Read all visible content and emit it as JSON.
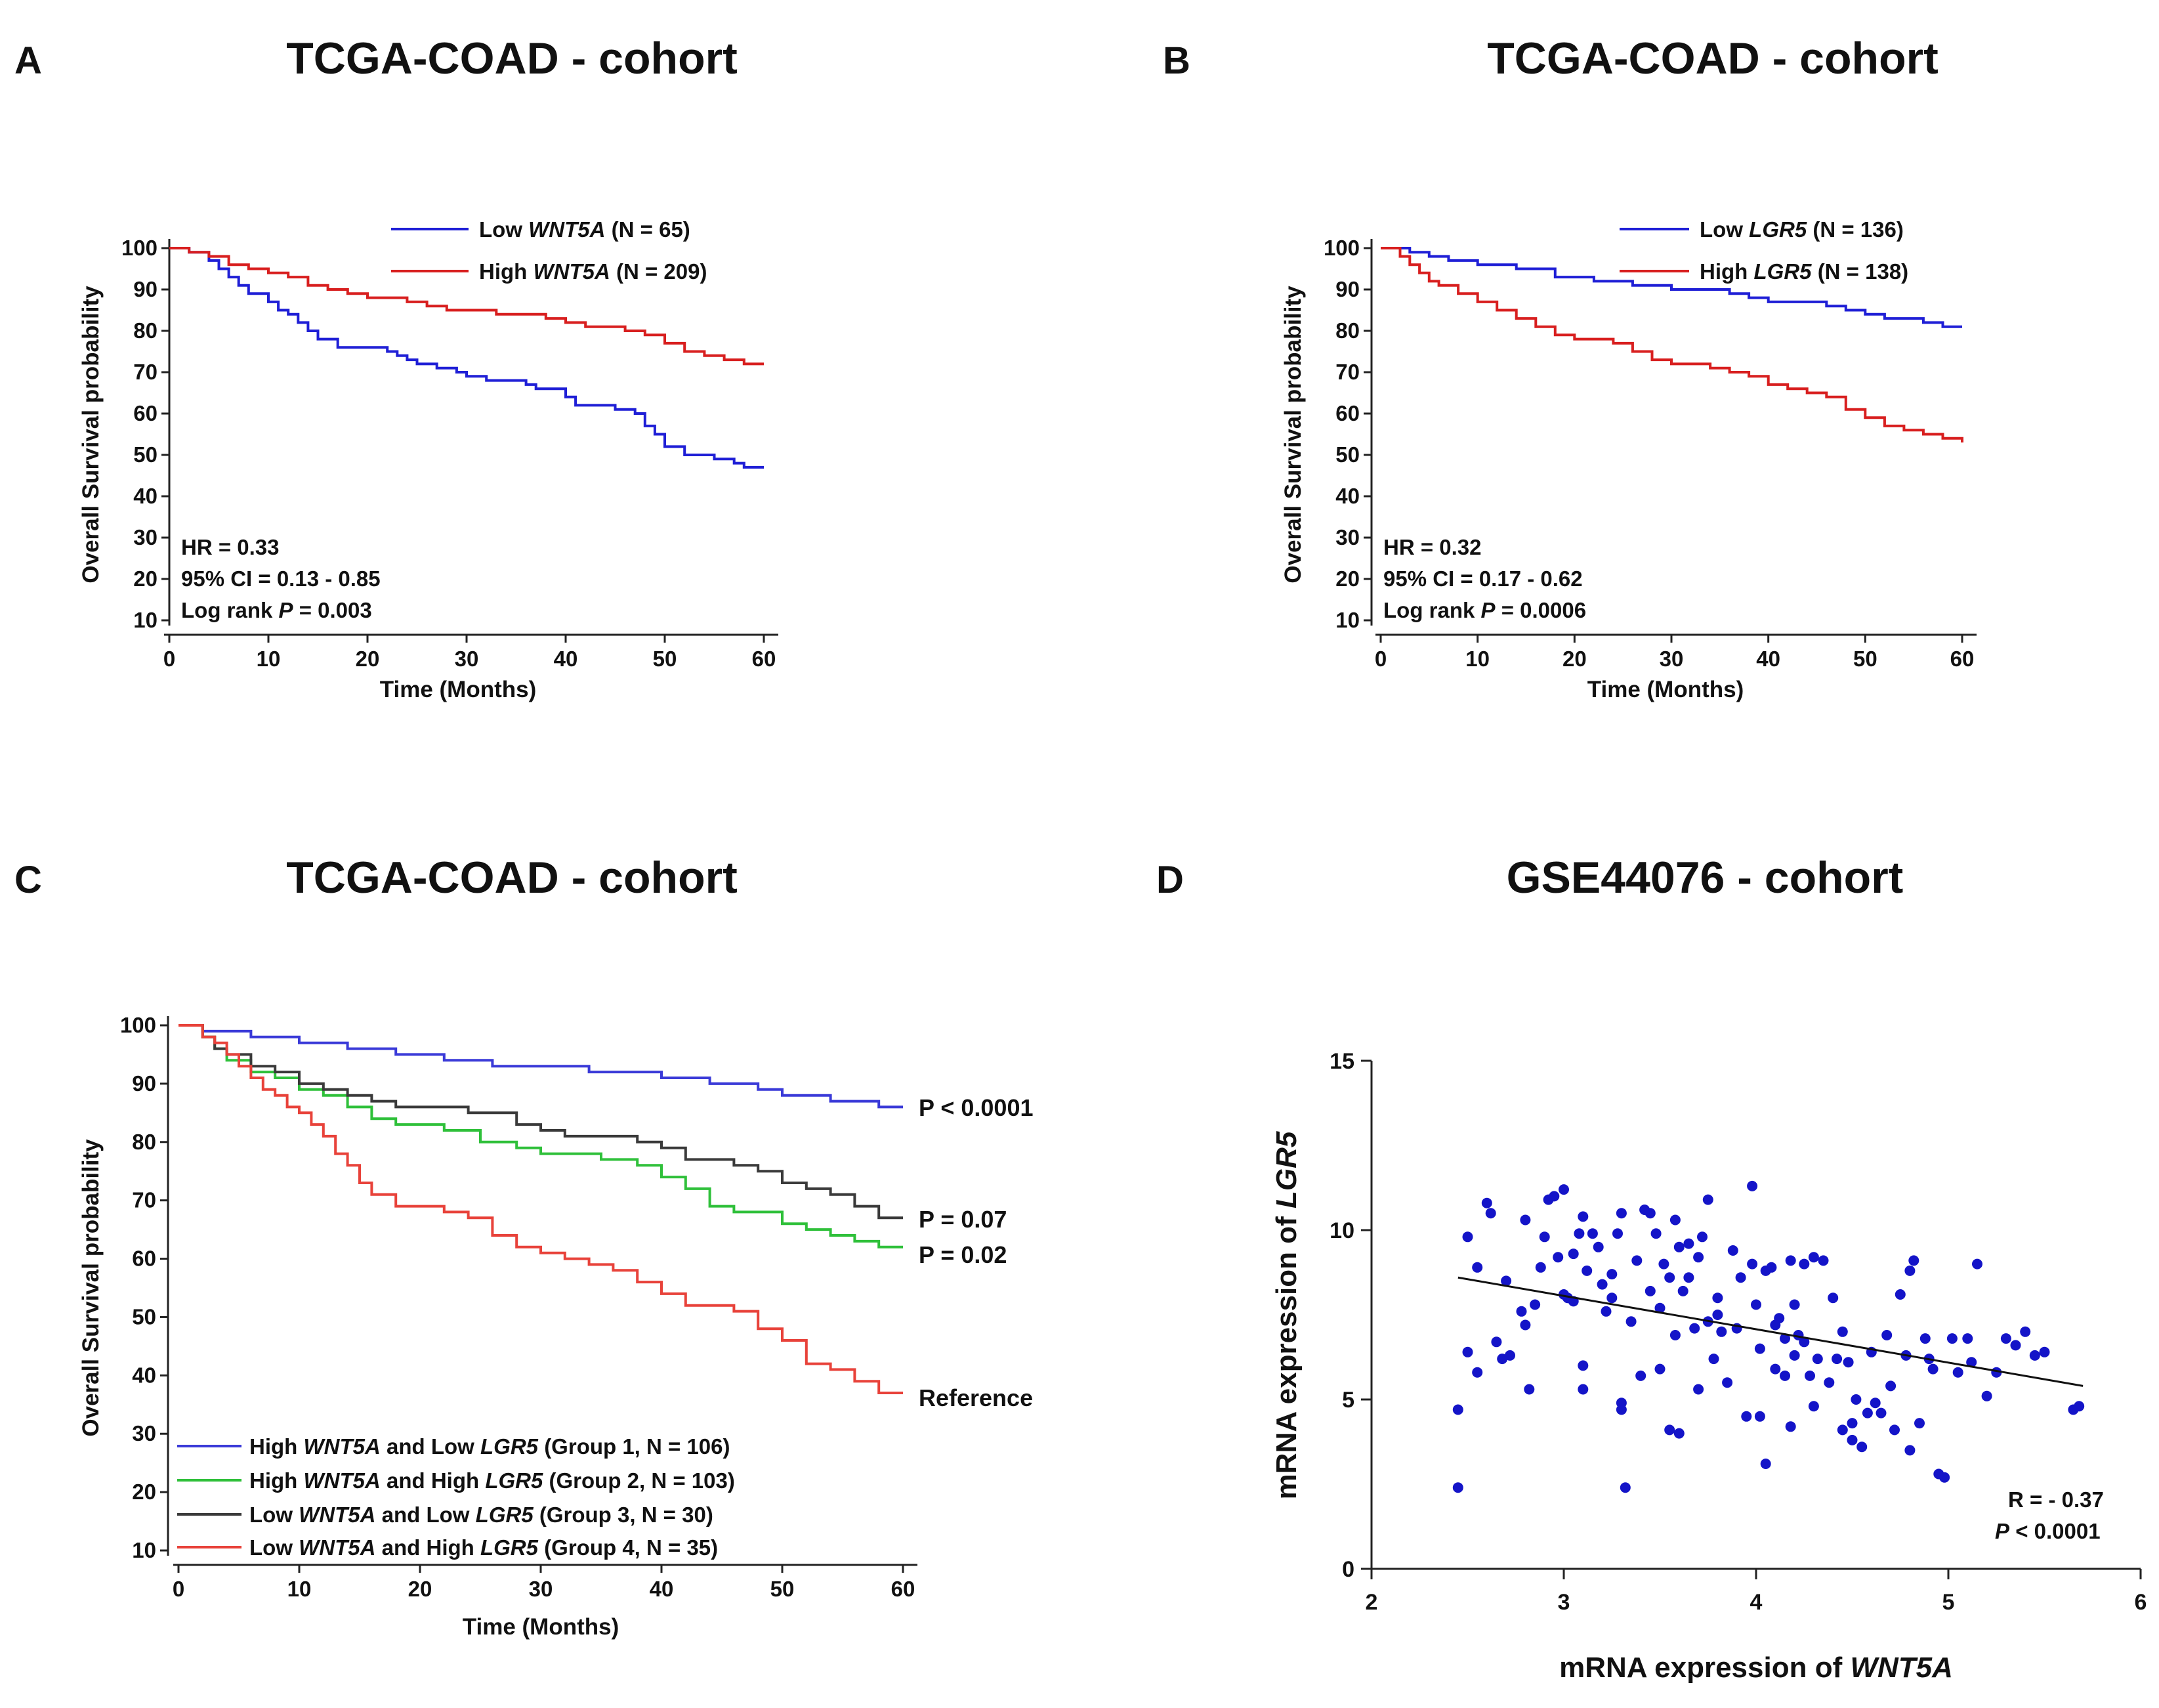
{
  "chart_data": [
    {
      "id": "A",
      "panel_label": "A",
      "type": "line",
      "title": "TCGA-COAD - cohort",
      "xlabel": "Time (Months)",
      "ylabel": "Overall Survival probability",
      "xlim": [
        0,
        60
      ],
      "ylim": [
        10,
        100
      ],
      "xticks": [
        0,
        10,
        20,
        30,
        40,
        50,
        60
      ],
      "yticks": [
        10,
        20,
        30,
        40,
        50,
        60,
        70,
        80,
        90,
        100
      ],
      "series": [
        {
          "name": "Low",
          "gene": "WNT5A",
          "n_text": "(N = 65)",
          "color": "#1f1fd6",
          "x": [
            0,
            2,
            4,
            5,
            6,
            7,
            8,
            10,
            11,
            12,
            13,
            14,
            15,
            17,
            20,
            22,
            23,
            24,
            25,
            27,
            29,
            30,
            32,
            35,
            36,
            37,
            40,
            41,
            44,
            45,
            47,
            48,
            49,
            50,
            52,
            54,
            55,
            57,
            58,
            60
          ],
          "y": [
            100,
            99,
            97,
            95,
            93,
            91,
            89,
            87,
            85,
            84,
            82,
            80,
            78,
            76,
            76,
            75,
            74,
            73,
            72,
            71,
            70,
            69,
            68,
            68,
            67,
            66,
            64,
            62,
            62,
            61,
            60,
            57,
            55,
            52,
            50,
            50,
            49,
            48,
            47,
            47
          ]
        },
        {
          "name": "High",
          "gene": "WNT5A",
          "n_text": "(N = 209)",
          "color": "#d81f1f",
          "x": [
            0,
            2,
            4,
            6,
            8,
            10,
            12,
            14,
            16,
            18,
            20,
            22,
            24,
            26,
            28,
            30,
            33,
            36,
            38,
            40,
            42,
            44,
            46,
            48,
            50,
            52,
            54,
            56,
            58,
            60
          ],
          "y": [
            100,
            99,
            98,
            96,
            95,
            94,
            93,
            91,
            90,
            89,
            88,
            88,
            87,
            86,
            85,
            85,
            84,
            84,
            83,
            82,
            81,
            81,
            80,
            79,
            77,
            75,
            74,
            73,
            72,
            72
          ]
        }
      ],
      "annotations": [
        "HR = 0.33",
        "95% CI = 0.13 - 0.85",
        "Log rank",
        "P",
        "= 0.003"
      ]
    },
    {
      "id": "B",
      "panel_label": "B",
      "type": "line",
      "title": "TCGA-COAD - cohort",
      "xlabel": "Time (Months)",
      "ylabel": "Overall Survival probability",
      "xlim": [
        0,
        60
      ],
      "ylim": [
        10,
        100
      ],
      "xticks": [
        0,
        10,
        20,
        30,
        40,
        50,
        60
      ],
      "yticks": [
        10,
        20,
        30,
        40,
        50,
        60,
        70,
        80,
        90,
        100
      ],
      "series": [
        {
          "name": "Low",
          "gene": "LGR5",
          "n_text": "(N = 136)",
          "color": "#1f1fd6",
          "x": [
            0,
            3,
            5,
            7,
            10,
            14,
            18,
            22,
            26,
            30,
            34,
            36,
            38,
            40,
            44,
            46,
            48,
            50,
            52,
            54,
            56,
            58,
            60
          ],
          "y": [
            100,
            99,
            98,
            97,
            96,
            95,
            93,
            92,
            91,
            90,
            90,
            89,
            88,
            87,
            87,
            86,
            85,
            84,
            83,
            83,
            82,
            81,
            81
          ]
        },
        {
          "name": "High",
          "gene": "LGR5",
          "n_text": "(N = 138)",
          "color": "#d81f1f",
          "x": [
            0,
            2,
            3,
            4,
            5,
            6,
            8,
            10,
            12,
            14,
            16,
            18,
            20,
            22,
            24,
            26,
            28,
            30,
            32,
            34,
            36,
            38,
            40,
            42,
            44,
            46,
            48,
            50,
            52,
            54,
            56,
            58,
            60
          ],
          "y": [
            100,
            98,
            96,
            94,
            92,
            91,
            89,
            87,
            85,
            83,
            81,
            79,
            78,
            78,
            77,
            75,
            73,
            72,
            72,
            71,
            70,
            69,
            67,
            66,
            65,
            64,
            61,
            59,
            57,
            56,
            55,
            54,
            53
          ]
        }
      ],
      "annotations": [
        "HR = 0.32",
        "95% CI = 0.17 - 0.62",
        "Log rank",
        "P",
        "= 0.0006"
      ]
    },
    {
      "id": "C",
      "panel_label": "C",
      "type": "line",
      "title": "TCGA-COAD - cohort",
      "xlabel": "Time (Months)",
      "ylabel": "Overall Survival probability",
      "xlim": [
        0,
        60
      ],
      "ylim": [
        10,
        100
      ],
      "xticks": [
        0,
        10,
        20,
        30,
        40,
        50,
        60
      ],
      "yticks": [
        10,
        20,
        30,
        40,
        50,
        60,
        70,
        80,
        90,
        100
      ],
      "series": [
        {
          "prefix": "High",
          "gene1": "WNT5A",
          "mid": "and Low",
          "gene2": "LGR5",
          "suffix": "(Group 1, N = 106)",
          "color": "#3a3ad8",
          "end_label": "P < 0.0001",
          "x": [
            0,
            2,
            4,
            6,
            8,
            10,
            14,
            18,
            22,
            26,
            30,
            34,
            38,
            40,
            42,
            44,
            46,
            48,
            50,
            52,
            54,
            56,
            58,
            60
          ],
          "y": [
            100,
            99,
            99,
            98,
            98,
            97,
            96,
            95,
            94,
            93,
            93,
            92,
            92,
            91,
            91,
            90,
            90,
            89,
            88,
            88,
            87,
            87,
            86,
            86
          ]
        },
        {
          "prefix": "High",
          "gene1": "WNT5A",
          "mid": "and High",
          "gene2": "LGR5",
          "suffix": "(Group 2, N = 103)",
          "color": "#2fc03a",
          "end_label": "P = 0.02",
          "x": [
            0,
            2,
            3,
            4,
            6,
            8,
            10,
            12,
            14,
            16,
            18,
            20,
            22,
            25,
            28,
            30,
            32,
            35,
            38,
            40,
            42,
            44,
            46,
            48,
            50,
            52,
            54,
            56,
            58,
            60
          ],
          "y": [
            100,
            98,
            96,
            94,
            92,
            91,
            89,
            88,
            86,
            84,
            83,
            83,
            82,
            80,
            79,
            78,
            78,
            77,
            76,
            74,
            72,
            69,
            68,
            68,
            66,
            65,
            64,
            63,
            62,
            62
          ]
        },
        {
          "prefix": "Low",
          "gene1": "WNT5A",
          "mid": "and Low",
          "gene2": "LGR5",
          "suffix": "(Group 3, N = 30)",
          "color": "#3a3a3a",
          "end_label": "P = 0.07",
          "x": [
            0,
            2,
            3,
            4,
            6,
            8,
            10,
            12,
            14,
            16,
            18,
            20,
            24,
            28,
            30,
            32,
            35,
            38,
            40,
            42,
            44,
            46,
            48,
            50,
            52,
            54,
            56,
            58,
            60
          ],
          "y": [
            100,
            98,
            96,
            95,
            93,
            92,
            90,
            89,
            88,
            87,
            86,
            86,
            85,
            83,
            82,
            81,
            81,
            80,
            79,
            77,
            77,
            76,
            75,
            73,
            72,
            71,
            69,
            67,
            67
          ]
        },
        {
          "prefix": "Low",
          "gene1": "WNT5A",
          "mid": "and High",
          "gene2": "LGR5",
          "suffix": "(Group 4, N = 35)",
          "color": "#e8423a",
          "end_label": "Reference",
          "x": [
            0,
            2,
            3,
            4,
            5,
            6,
            7,
            8,
            9,
            10,
            11,
            12,
            13,
            14,
            15,
            16,
            18,
            20,
            22,
            24,
            26,
            28,
            30,
            32,
            34,
            36,
            38,
            40,
            42,
            44,
            46,
            48,
            50,
            52,
            54,
            56,
            58,
            60
          ],
          "y": [
            100,
            98,
            97,
            95,
            93,
            91,
            89,
            88,
            86,
            85,
            83,
            81,
            78,
            76,
            73,
            71,
            69,
            69,
            68,
            67,
            64,
            62,
            61,
            60,
            59,
            58,
            56,
            54,
            52,
            52,
            51,
            48,
            46,
            42,
            41,
            39,
            37,
            37
          ]
        }
      ]
    },
    {
      "id": "D",
      "panel_label": "D",
      "type": "scatter",
      "title": "GSE44076 - cohort",
      "xlabel_prefix": "mRNA expression of",
      "xlabel_gene": "WNT5A",
      "ylabel_prefix": "mRNA expression of",
      "ylabel_gene": "LGR5",
      "xlim": [
        2,
        6
      ],
      "ylim": [
        0,
        15
      ],
      "xticks": [
        2,
        3,
        4,
        5,
        6
      ],
      "yticks": [
        0,
        5,
        10,
        15
      ],
      "point_color": "#1414c8",
      "points": [
        [
          2.45,
          4.7
        ],
        [
          2.45,
          2.4
        ],
        [
          2.5,
          6.4
        ],
        [
          2.5,
          9.8
        ],
        [
          2.55,
          8.9
        ],
        [
          2.55,
          5.8
        ],
        [
          2.6,
          10.8
        ],
        [
          2.62,
          10.5
        ],
        [
          2.65,
          6.7
        ],
        [
          2.68,
          6.2
        ],
        [
          2.7,
          8.5
        ],
        [
          2.72,
          6.3
        ],
        [
          2.78,
          7.6
        ],
        [
          2.8,
          10.3
        ],
        [
          2.8,
          7.2
        ],
        [
          2.82,
          5.3
        ],
        [
          2.85,
          7.8
        ],
        [
          2.88,
          8.9
        ],
        [
          2.9,
          9.8
        ],
        [
          2.92,
          10.9
        ],
        [
          2.95,
          11.0
        ],
        [
          2.97,
          9.2
        ],
        [
          3.0,
          11.2
        ],
        [
          3.0,
          8.1
        ],
        [
          3.02,
          8.0
        ],
        [
          3.05,
          9.3
        ],
        [
          3.05,
          7.9
        ],
        [
          3.08,
          9.9
        ],
        [
          3.1,
          10.4
        ],
        [
          3.1,
          6.0
        ],
        [
          3.1,
          5.3
        ],
        [
          3.12,
          8.8
        ],
        [
          3.15,
          9.9
        ],
        [
          3.18,
          9.5
        ],
        [
          3.2,
          8.4
        ],
        [
          3.22,
          7.6
        ],
        [
          3.25,
          8.7
        ],
        [
          3.25,
          8.0
        ],
        [
          3.28,
          9.9
        ],
        [
          3.3,
          10.5
        ],
        [
          3.3,
          4.9
        ],
        [
          3.3,
          4.7
        ],
        [
          3.32,
          2.4
        ],
        [
          3.35,
          7.3
        ],
        [
          3.38,
          9.1
        ],
        [
          3.4,
          5.7
        ],
        [
          3.42,
          10.6
        ],
        [
          3.45,
          10.5
        ],
        [
          3.45,
          8.2
        ],
        [
          3.48,
          9.9
        ],
        [
          3.5,
          7.7
        ],
        [
          3.5,
          5.9
        ],
        [
          3.52,
          9.0
        ],
        [
          3.55,
          8.6
        ],
        [
          3.55,
          4.1
        ],
        [
          3.58,
          10.3
        ],
        [
          3.58,
          6.9
        ],
        [
          3.6,
          9.5
        ],
        [
          3.6,
          4.0
        ],
        [
          3.62,
          8.2
        ],
        [
          3.65,
          9.6
        ],
        [
          3.65,
          8.6
        ],
        [
          3.68,
          7.1
        ],
        [
          3.7,
          9.2
        ],
        [
          3.7,
          5.3
        ],
        [
          3.72,
          9.8
        ],
        [
          3.75,
          10.9
        ],
        [
          3.75,
          7.3
        ],
        [
          3.78,
          6.2
        ],
        [
          3.8,
          8.0
        ],
        [
          3.8,
          7.5
        ],
        [
          3.82,
          7.0
        ],
        [
          3.85,
          5.5
        ],
        [
          3.88,
          9.4
        ],
        [
          3.9,
          7.1
        ],
        [
          3.92,
          8.6
        ],
        [
          3.95,
          4.5
        ],
        [
          3.98,
          11.3
        ],
        [
          3.98,
          9.0
        ],
        [
          4.0,
          7.8
        ],
        [
          4.02,
          6.5
        ],
        [
          4.02,
          4.5
        ],
        [
          4.05,
          8.8
        ],
        [
          4.05,
          3.1
        ],
        [
          4.08,
          8.9
        ],
        [
          4.1,
          7.2
        ],
        [
          4.1,
          5.9
        ],
        [
          4.12,
          7.4
        ],
        [
          4.15,
          6.8
        ],
        [
          4.15,
          5.7
        ],
        [
          4.18,
          9.1
        ],
        [
          4.18,
          4.2
        ],
        [
          4.2,
          7.8
        ],
        [
          4.2,
          6.3
        ],
        [
          4.22,
          6.9
        ],
        [
          4.25,
          9.0
        ],
        [
          4.25,
          6.7
        ],
        [
          4.28,
          5.7
        ],
        [
          4.3,
          9.2
        ],
        [
          4.3,
          4.8
        ],
        [
          4.32,
          6.2
        ],
        [
          4.35,
          9.1
        ],
        [
          4.38,
          5.5
        ],
        [
          4.4,
          8.0
        ],
        [
          4.42,
          6.2
        ],
        [
          4.45,
          7.0
        ],
        [
          4.45,
          4.1
        ],
        [
          4.48,
          6.1
        ],
        [
          4.5,
          4.3
        ],
        [
          4.5,
          3.8
        ],
        [
          4.52,
          5.0
        ],
        [
          4.55,
          3.6
        ],
        [
          4.58,
          4.6
        ],
        [
          4.6,
          6.4
        ],
        [
          4.62,
          4.9
        ],
        [
          4.65,
          4.6
        ],
        [
          4.68,
          6.9
        ],
        [
          4.7,
          5.4
        ],
        [
          4.72,
          4.1
        ],
        [
          4.75,
          8.1
        ],
        [
          4.78,
          6.3
        ],
        [
          4.8,
          8.8
        ],
        [
          4.8,
          3.5
        ],
        [
          4.82,
          9.1
        ],
        [
          4.85,
          4.3
        ],
        [
          4.88,
          6.8
        ],
        [
          4.9,
          6.2
        ],
        [
          4.92,
          5.9
        ],
        [
          4.95,
          2.8
        ],
        [
          4.98,
          2.7
        ],
        [
          5.02,
          6.8
        ],
        [
          5.05,
          5.8
        ],
        [
          5.1,
          6.8
        ],
        [
          5.12,
          6.1
        ],
        [
          5.15,
          9.0
        ],
        [
          5.2,
          5.1
        ],
        [
          5.25,
          5.8
        ],
        [
          5.3,
          6.8
        ],
        [
          5.35,
          6.6
        ],
        [
          5.4,
          7.0
        ],
        [
          5.45,
          6.3
        ],
        [
          5.5,
          6.4
        ],
        [
          5.65,
          4.7
        ],
        [
          5.68,
          4.8
        ]
      ],
      "regression": {
        "x": [
          2.45,
          5.7
        ],
        "y": [
          8.6,
          5.4
        ]
      },
      "annotations": [
        "R = - 0.37",
        "P",
        "< 0.0001"
      ]
    }
  ]
}
